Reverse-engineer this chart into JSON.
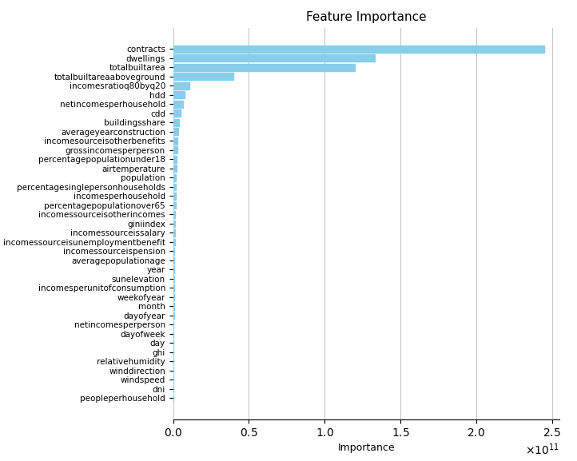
{
  "title": "Feature Importance",
  "xlabel": "Importance",
  "features": [
    "contracts",
    "dwellings",
    "totalbuiltarea",
    "totalbuiltareaaboveground",
    "incomesratioq80byq20",
    "hdd",
    "netincomesperhousehold",
    "cdd",
    "buildingsshare",
    "averageyearconstruction",
    "incomesourceisotherbenefits",
    "grossincomesperperson",
    "percentagepopulationunder18",
    "airtemperature",
    "population",
    "percentagesinglepersonhouseholds",
    "incomesperhousehold",
    "percentagepopulationover65",
    "incomessourceisotherincomes",
    "giniindex",
    "incomessourceissalary",
    "incomessourceisunemploymentbenefit",
    "incomessourceispension",
    "averagepopulationage",
    "year",
    "sunelevation",
    "incomesperunitofconsumption",
    "weekofyear",
    "month",
    "dayofyear",
    "netincomesperperson",
    "dayofweek",
    "day",
    "ghi",
    "relativehumidity",
    "winddirection",
    "windspeed",
    "dni",
    "peopleperhousehold"
  ],
  "values": [
    245000000000.0,
    133000000000.0,
    120000000000.0,
    40000000000.0,
    10500000000.0,
    7500000000.0,
    6500000000.0,
    5000000000.0,
    3800000000.0,
    3500000000.0,
    3000000000.0,
    2800000000.0,
    2500000000.0,
    2200000000.0,
    2000000000.0,
    1800000000.0,
    1700000000.0,
    1600000000.0,
    1500000000.0,
    1300000000.0,
    1200000000.0,
    1100000000.0,
    1000000000.0,
    900000000.0,
    800000000.0,
    700000000.0,
    650000000.0,
    600000000.0,
    550000000.0,
    500000000.0,
    450000000.0,
    400000000.0,
    350000000.0,
    300000000.0,
    250000000.0,
    200000000.0,
    150000000.0,
    100000000.0,
    50000000.0
  ],
  "bar_color": "#87CEEB",
  "grid_color": "#c8c8c8",
  "background_color": "#ffffff",
  "title_fontsize": 11,
  "label_fontsize": 9,
  "tick_fontsize": 7.5,
  "xlim": [
    0,
    255000000000.0
  ]
}
